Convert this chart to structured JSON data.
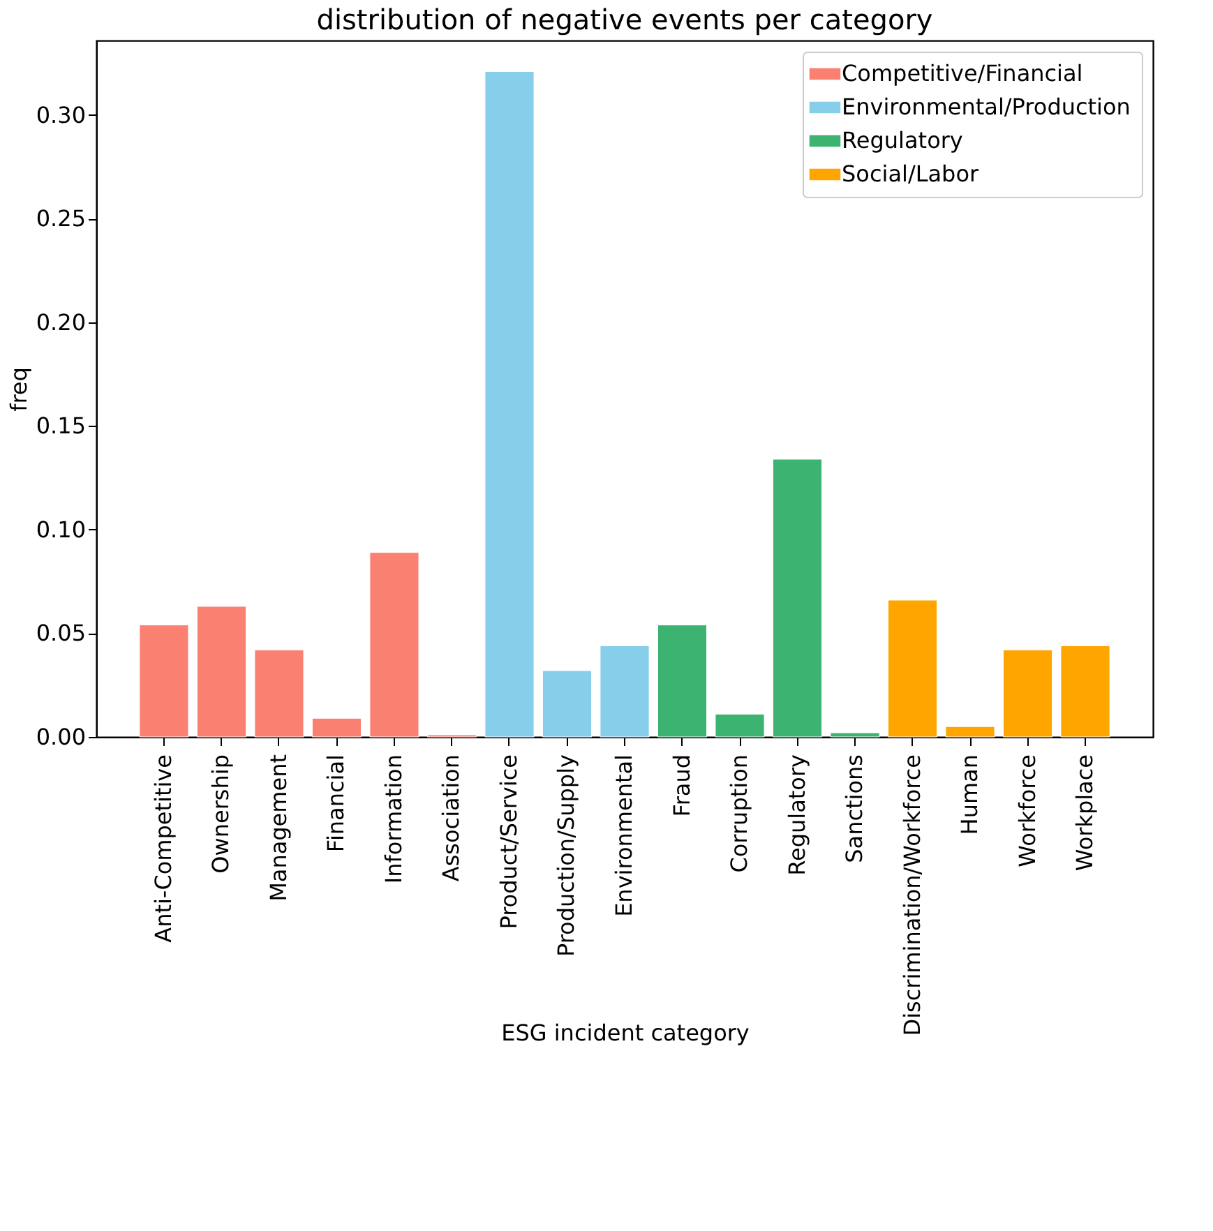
{
  "chart_data": {
    "type": "bar",
    "title": "distribution of negative events per category",
    "xlabel": "ESG incident category",
    "ylabel": "freq",
    "categories": [
      "Anti-Competitive",
      "Ownership",
      "Management",
      "Financial",
      "Information",
      "Association",
      "Product/Service",
      "Production/Supply",
      "Environmental",
      "Fraud",
      "Corruption",
      "Regulatory",
      "Sanctions",
      "Discrimination/Workforce",
      "Human",
      "Workforce",
      "Workplace"
    ],
    "series": [
      {
        "name": "Competitive/Financial",
        "color": "#fa8072",
        "values": [
          0.054,
          0.063,
          0.042,
          0.009,
          0.089,
          0.001,
          null,
          null,
          null,
          null,
          null,
          null,
          null,
          null,
          null,
          null,
          null
        ]
      },
      {
        "name": "Environmental/Production",
        "color": "#87ceeb",
        "values": [
          null,
          null,
          null,
          null,
          null,
          null,
          0.321,
          0.032,
          0.044,
          null,
          null,
          null,
          null,
          null,
          null,
          null,
          null
        ]
      },
      {
        "name": "Regulatory",
        "color": "#3cb371",
        "values": [
          null,
          null,
          null,
          null,
          null,
          null,
          null,
          null,
          null,
          0.054,
          0.011,
          0.134,
          0.002,
          null,
          null,
          null,
          null
        ]
      },
      {
        "name": "Social/Labor",
        "color": "#ffa500",
        "values": [
          null,
          null,
          null,
          null,
          null,
          null,
          null,
          null,
          null,
          null,
          null,
          null,
          null,
          0.066,
          0.005,
          0.042,
          0.044
        ]
      }
    ],
    "ylim": [
      0,
      0.336
    ],
    "yticks": [
      {
        "value": 0,
        "label": "0.00"
      },
      {
        "value": 0.05,
        "label": "0.05"
      },
      {
        "value": 0.1,
        "label": "0.10"
      },
      {
        "value": 0.15,
        "label": "0.15"
      },
      {
        "value": 0.2,
        "label": "0.20"
      },
      {
        "value": 0.25,
        "label": "0.25"
      },
      {
        "value": 0.3,
        "label": "0.30"
      }
    ],
    "grid": false,
    "legend": "top right"
  }
}
